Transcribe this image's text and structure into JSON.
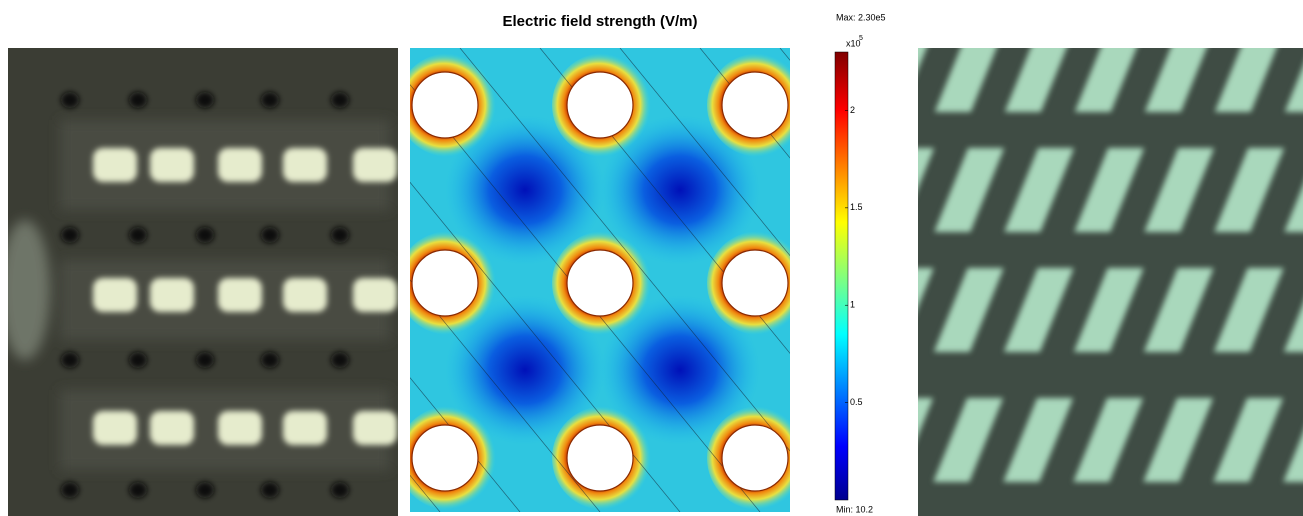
{
  "chart_data": {
    "type": "field-map",
    "title": "Electric field strength (V/m)",
    "colorbar": {
      "max_label": "Max: 2.30e5",
      "min_label": "Min: 10.2",
      "multiplier": "x10",
      "exponent": "5",
      "clim": [
        0.000102,
        2.3
      ],
      "ticks": [
        0.5,
        1,
        1.5,
        2
      ]
    }
  }
}
